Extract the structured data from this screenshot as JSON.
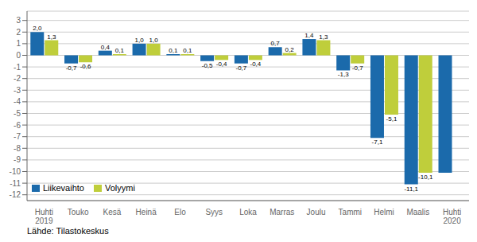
{
  "chart_data": {
    "type": "bar",
    "categories": [
      "Huhti\n2019",
      "Touko",
      "Kesä",
      "Heinä",
      "Elo",
      "Syys",
      "Loka",
      "Marras",
      "Joulu",
      "Tammi",
      "Helmi",
      "Maalis",
      "Huhti\n2020"
    ],
    "series": [
      {
        "name": "Liikevaihto",
        "color": "#1B6AAB",
        "values": [
          2.0,
          -0.7,
          0.4,
          1.0,
          0.1,
          -0.5,
          -0.7,
          0.7,
          1.4,
          -1.3,
          -7.1,
          -11.1,
          -10.1
        ],
        "value_labels": [
          "2,0",
          "-0,7",
          "0,4",
          "1,0",
          "0,1",
          "-0,5",
          "-0,7",
          "0,7",
          "1,4",
          "-1,3",
          "-7,1",
          "-11,1",
          null
        ]
      },
      {
        "name": "Volyymi",
        "color": "#BFCE3B",
        "values": [
          1.3,
          -0.6,
          0.1,
          1.0,
          0.1,
          -0.4,
          -0.4,
          0.2,
          1.3,
          -0.7,
          -5.1,
          -10.1,
          0.0
        ],
        "value_labels": [
          "1,3",
          "-0,6",
          "0,1",
          "1,0",
          "0,1",
          "-0,4",
          "-0,4",
          "0,2",
          "1,3",
          "-0,7",
          "-5,1",
          "-10,1",
          null
        ]
      }
    ],
    "ylim": [
      -12.5,
      3.8
    ],
    "yticks": [
      -12,
      -11,
      -10,
      -9,
      -8,
      -7,
      -6,
      -5,
      -4,
      -3,
      -2,
      -1,
      0,
      1,
      2,
      3
    ],
    "grid": true,
    "legend": "lower left",
    "data_labels": true,
    "annotations": [
      "Lähde: Tilastokeskus"
    ]
  }
}
